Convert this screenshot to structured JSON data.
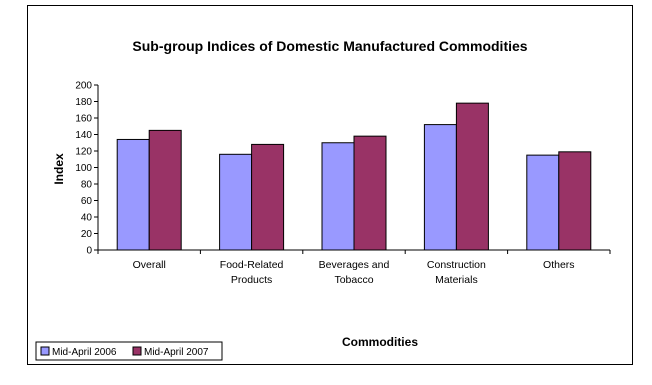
{
  "chart_data": {
    "type": "bar",
    "title": "Sub-group Indices of Domestic Manufactured Commodities",
    "xlabel": "Commodities",
    "ylabel": "Index",
    "ylim": [
      0,
      200
    ],
    "yticks": [
      "0",
      "20",
      "40",
      "60",
      "80",
      "100",
      "120",
      "140",
      "160",
      "180",
      "200"
    ],
    "categories": [
      [
        "Overall"
      ],
      [
        "Food-Related",
        "Products"
      ],
      [
        "Beverages and",
        "Tobacco"
      ],
      [
        "Construction",
        "Materials"
      ],
      [
        "Others"
      ]
    ],
    "series": [
      {
        "name": "Mid-April 2006",
        "color": "#9999ff",
        "values": [
          134,
          116,
          130,
          152,
          115
        ]
      },
      {
        "name": "Mid-April 2007",
        "color": "#993366",
        "values": [
          145,
          128,
          138,
          178,
          119
        ]
      }
    ],
    "grid": false,
    "legend_position": "bottom-left"
  }
}
